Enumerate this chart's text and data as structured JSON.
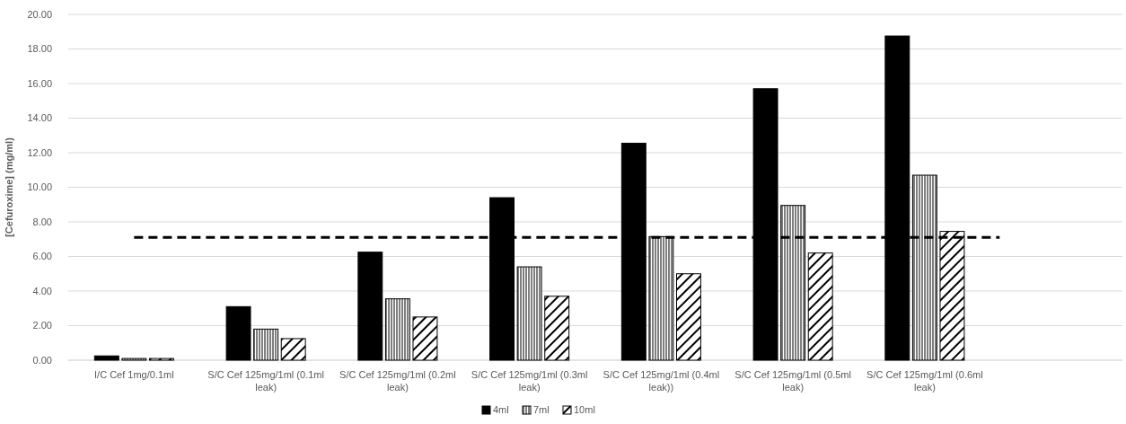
{
  "chart_data": {
    "type": "bar",
    "ylabel": "[Cefuroxime]  (mg/ml)",
    "categories": [
      "I/C Cef 1mg/0.1ml",
      "S/C Cef 125mg/1ml (0.1ml leak)",
      "S/C Cef 125mg/1ml (0.2ml leak)",
      "S/C Cef 125mg/1ml (0.3ml leak)",
      "S/C Cef 125mg/1ml (0.4ml leak))",
      "S/C Cef 125mg/1ml (0.5ml leak)",
      "S/C Cef 125mg/1ml (0.6ml leak)",
      null
    ],
    "series": [
      {
        "name": "4ml",
        "color": "#000000",
        "values": [
          0.25,
          3.1,
          6.25,
          9.4,
          12.55,
          15.7,
          18.75,
          null
        ]
      },
      {
        "name": "7ml",
        "color": "#000000",
        "values": [
          0.1,
          1.8,
          3.55,
          5.4,
          7.15,
          8.95,
          10.7,
          null
        ]
      },
      {
        "name": "10ml",
        "color": "#000000",
        "values": [
          0.1,
          1.25,
          2.5,
          3.7,
          5.0,
          6.2,
          7.45,
          null
        ]
      }
    ],
    "ylim": [
      0,
      20
    ],
    "yticks": [
      {
        "value": 0,
        "label": "0.00"
      },
      {
        "value": 2,
        "label": "2.00"
      },
      {
        "value": 4,
        "label": "4.00"
      },
      {
        "value": 6,
        "label": "6.00"
      },
      {
        "value": 8,
        "label": "8.00"
      },
      {
        "value": 10,
        "label": "10.00"
      },
      {
        "value": 12,
        "label": "12.00"
      },
      {
        "value": 14,
        "label": "14.00"
      },
      {
        "value": 16,
        "label": "16.00"
      },
      {
        "value": 18,
        "label": "18.00"
      },
      {
        "value": 20,
        "label": "20.00"
      }
    ],
    "ref_lines": [
      {
        "axis": "y",
        "value": 7.1,
        "color": "#000000",
        "line_style": "dashed"
      }
    ],
    "grid": "y",
    "legend": "bottom"
  }
}
